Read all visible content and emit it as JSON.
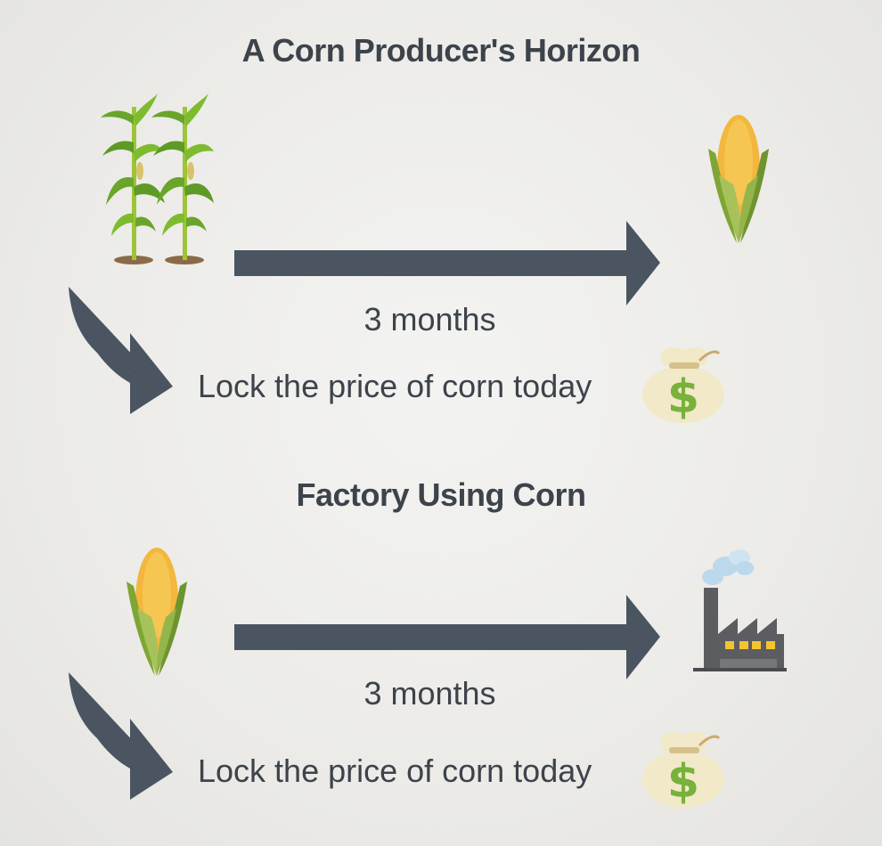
{
  "section_1": {
    "title": "A Corn Producer's Horizon",
    "duration_label": "3 months",
    "hedge_label": "Lock the price of corn today",
    "icons": [
      "corn-plant-icon",
      "corn-cob-icon",
      "money-bag-icon"
    ]
  },
  "section_2": {
    "title": "Factory Using Corn",
    "duration_label": "3 months",
    "hedge_label": "Lock the price of corn today",
    "icons": [
      "corn-cob-icon",
      "factory-icon",
      "money-bag-icon"
    ]
  },
  "colors": {
    "text": "#3d434b",
    "arrow": "#4a5561",
    "corn_yellow": "#f2b73c",
    "husk_green": "#7fa534",
    "bag": "#f1e9c8",
    "dollar": "#78b13b",
    "factory": "#5c5d61",
    "smoke": "#bcd9ec"
  }
}
